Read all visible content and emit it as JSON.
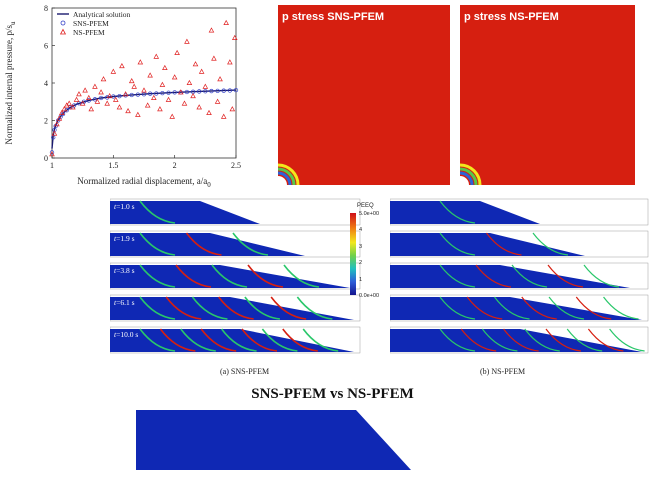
{
  "chart_data": {
    "type": "scatter",
    "xlabel_main": "Normalized radial displacement, a/a",
    "xlabel_sub": "0",
    "ylabel_main": "Normalized internal pressure, p/s",
    "ylabel_sub": "u",
    "xlim": [
      1,
      2.5
    ],
    "ylim": [
      0,
      8
    ],
    "xticks": [
      "1",
      "1.5",
      "2",
      "2.5"
    ],
    "yticks": [
      "0",
      "2",
      "4",
      "6",
      "8"
    ],
    "legend_position": "top-left",
    "series": [
      {
        "name": "Analytical solution",
        "kind": "line",
        "color": "#1a1a6e",
        "x": [
          1.0,
          1.01,
          1.02,
          1.04,
          1.06,
          1.08,
          1.1,
          1.15,
          1.2,
          1.3,
          1.4,
          1.5,
          1.6,
          1.8,
          2.0,
          2.2,
          2.5
        ],
        "y": [
          0.5,
          1.2,
          1.55,
          1.9,
          2.12,
          2.3,
          2.45,
          2.7,
          2.87,
          3.07,
          3.2,
          3.28,
          3.34,
          3.43,
          3.5,
          3.55,
          3.62
        ]
      },
      {
        "name": "SNS-PFEM",
        "kind": "marker",
        "marker": "circle",
        "color": "#3340c8",
        "x": [
          1.0,
          1.01,
          1.02,
          1.03,
          1.05,
          1.07,
          1.09,
          1.12,
          1.15,
          1.18,
          1.22,
          1.26,
          1.3,
          1.35,
          1.4,
          1.45,
          1.5,
          1.55,
          1.6,
          1.65,
          1.7,
          1.75,
          1.8,
          1.85,
          1.9,
          1.95,
          2.0,
          2.05,
          2.1,
          2.15,
          2.2,
          2.25,
          2.3,
          2.35,
          2.4,
          2.45,
          2.5
        ],
        "y": [
          0.3,
          1.1,
          1.5,
          1.7,
          2.0,
          2.2,
          2.35,
          2.55,
          2.7,
          2.8,
          2.92,
          3.0,
          3.07,
          3.13,
          3.2,
          3.23,
          3.28,
          3.3,
          3.34,
          3.36,
          3.38,
          3.4,
          3.43,
          3.44,
          3.46,
          3.48,
          3.5,
          3.5,
          3.52,
          3.53,
          3.55,
          3.56,
          3.57,
          3.58,
          3.59,
          3.6,
          3.62
        ]
      },
      {
        "name": "NS-PFEM",
        "kind": "marker",
        "marker": "triangle",
        "color": "#e02020",
        "x": [
          1.0,
          1.02,
          1.04,
          1.06,
          1.08,
          1.1,
          1.12,
          1.14,
          1.17,
          1.2,
          1.22,
          1.25,
          1.27,
          1.3,
          1.32,
          1.35,
          1.37,
          1.4,
          1.42,
          1.45,
          1.47,
          1.5,
          1.52,
          1.55,
          1.57,
          1.6,
          1.62,
          1.65,
          1.67,
          1.7,
          1.72,
          1.75,
          1.78,
          1.8,
          1.83,
          1.85,
          1.88,
          1.9,
          1.92,
          1.95,
          1.98,
          2.0,
          2.02,
          2.05,
          2.08,
          2.1,
          2.12,
          2.15,
          2.17,
          2.2,
          2.22,
          2.25,
          2.28,
          2.3,
          2.32,
          2.35,
          2.37,
          2.4,
          2.42,
          2.45,
          2.47,
          2.49
        ],
        "y": [
          0.2,
          1.3,
          1.8,
          2.1,
          2.4,
          2.6,
          2.8,
          2.9,
          2.7,
          3.1,
          3.4,
          2.9,
          3.6,
          3.2,
          2.6,
          3.8,
          3.0,
          3.5,
          4.2,
          2.9,
          3.3,
          4.6,
          3.1,
          2.7,
          4.9,
          3.4,
          2.5,
          4.1,
          3.8,
          2.3,
          5.1,
          3.6,
          2.8,
          4.4,
          3.2,
          5.4,
          2.6,
          3.9,
          4.8,
          3.1,
          2.2,
          4.3,
          5.6,
          3.5,
          2.9,
          6.2,
          4.0,
          3.3,
          5.0,
          2.7,
          4.6,
          3.8,
          2.4,
          6.8,
          5.3,
          3.0,
          4.2,
          2.2,
          7.2,
          5.1,
          2.6,
          6.4
        ]
      }
    ]
  },
  "panels": {
    "sns_title": "p stress SNS-PFEM",
    "ns_title": "p stress NS-PFEM"
  },
  "slope": {
    "times": [
      "=1.0 s",
      "=1.9 s",
      "=3.8 s",
      "=6.1 s",
      "=10.0 s"
    ],
    "time_var": "t",
    "colorbar_title": "PEEQ",
    "colorbar_ticks": [
      "5.0e+00",
      "4",
      "3",
      "2",
      "1",
      "0.0e+00"
    ],
    "caption_a": "(a) SNS-PFEM",
    "caption_b": "(b) NS-PFEM"
  },
  "heading": "SNS-PFEM vs NS-PFEM",
  "colors": {
    "contour_red": "#d61f10",
    "slope_blue": "#0f28b4",
    "shear_green": "#29c76a"
  }
}
